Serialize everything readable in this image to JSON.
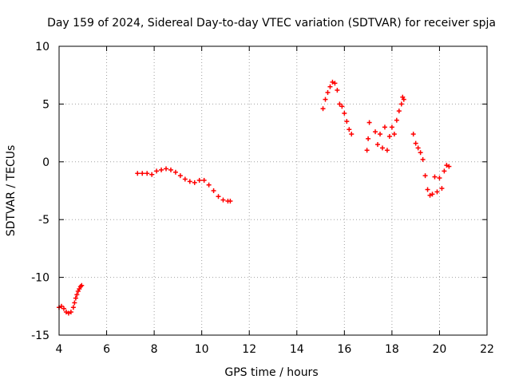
{
  "chart_data": {
    "type": "scatter",
    "title": "Day 159 of 2024, Sidereal Day-to-day VTEC variation (SDTVAR) for receiver spja",
    "xlabel": "GPS time / hours",
    "ylabel": "SDTVAR / TECUs",
    "xlim": [
      4,
      22
    ],
    "ylim": [
      -15,
      10
    ],
    "x_ticks": [
      4,
      6,
      8,
      10,
      12,
      14,
      16,
      18,
      20,
      22
    ],
    "y_ticks": [
      -15,
      -10,
      -5,
      0,
      5,
      10
    ],
    "x_tick_labels": [
      "4",
      "6",
      "8",
      "10",
      "12",
      "14",
      "16",
      "18",
      "20",
      "22"
    ],
    "y_tick_labels": [
      "-15",
      "-10",
      "-5",
      "0",
      "5",
      "10"
    ],
    "grid": true,
    "marker": "+",
    "colors": {
      "series": "#ff0000",
      "axis": "#000000",
      "grid": "#a0a0a0"
    },
    "series": [
      {
        "name": "SDTVAR",
        "x": [
          4.0,
          4.1,
          4.2,
          4.3,
          4.4,
          4.5,
          4.6,
          4.65,
          4.7,
          4.75,
          4.8,
          4.85,
          4.9,
          4.95,
          7.3,
          7.5,
          7.7,
          7.9,
          8.1,
          8.3,
          8.5,
          8.7,
          8.9,
          9.1,
          9.3,
          9.5,
          9.7,
          9.9,
          10.1,
          10.3,
          10.5,
          10.7,
          10.9,
          11.1,
          11.2,
          15.1,
          15.2,
          15.3,
          15.4,
          15.5,
          15.6,
          15.7,
          15.8,
          15.9,
          16.0,
          16.1,
          16.2,
          16.3,
          16.95,
          17.0,
          17.05,
          17.3,
          17.4,
          17.5,
          17.6,
          17.7,
          17.8,
          17.9,
          18.0,
          18.1,
          18.2,
          18.3,
          18.4,
          18.45,
          18.5,
          18.9,
          19.0,
          19.1,
          19.2,
          19.3,
          19.4,
          19.5,
          19.6,
          19.7,
          19.8,
          19.9,
          20.0,
          20.1,
          20.2,
          20.3,
          20.4
        ],
        "y": [
          -12.6,
          -12.5,
          -12.7,
          -13.0,
          -13.1,
          -13.0,
          -12.6,
          -12.2,
          -11.8,
          -11.5,
          -11.2,
          -11.0,
          -10.8,
          -10.7,
          -1.0,
          -1.0,
          -1.0,
          -1.1,
          -0.8,
          -0.7,
          -0.6,
          -0.7,
          -0.9,
          -1.2,
          -1.5,
          -1.7,
          -1.8,
          -1.6,
          -1.6,
          -2.0,
          -2.5,
          -3.0,
          -3.3,
          -3.4,
          -3.4,
          4.6,
          5.4,
          6.0,
          6.5,
          6.9,
          6.8,
          6.2,
          5.0,
          4.8,
          4.2,
          3.5,
          2.8,
          2.4,
          1.0,
          2.0,
          3.4,
          2.6,
          1.5,
          2.4,
          1.2,
          3.0,
          1.0,
          2.2,
          3.0,
          2.4,
          3.6,
          4.4,
          5.0,
          5.6,
          5.4,
          2.4,
          1.6,
          1.2,
          0.8,
          0.2,
          -1.2,
          -2.4,
          -2.9,
          -2.8,
          -1.3,
          -2.6,
          -1.4,
          -2.3,
          -0.8,
          -0.3,
          -0.4
        ]
      }
    ]
  }
}
